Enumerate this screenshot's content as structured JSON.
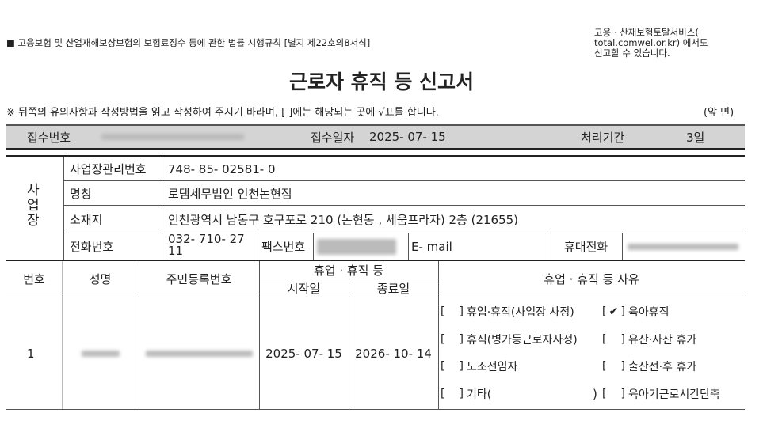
{
  "header": {
    "form_ref": "■ 고용보험 및 산업재해보상보험의 보험료징수 등에 관한 법률 시행규칙 [별지 제22호의8서식]",
    "online_note": [
      "고용 · 산재보험토탈서비스(",
      "total.comwel.or.kr) 에서도",
      "신고할 수 있습니다."
    ],
    "title": "근로자 휴직 등 신고서",
    "instruction": "※ 뒤쪽의 유의사항과 작성방법을 읽고 작성하여 주시기 바라며, [  ]에는 해당되는 곳에 √표를 합니다.",
    "page_side": "(앞 면)"
  },
  "receipt": {
    "number_label": "접수번호",
    "date_label": "접수일자",
    "date": "2025- 07- 15",
    "period_label": "처리기간",
    "period": "3일"
  },
  "business": {
    "section_label": "사업장",
    "id_label": "사업장관리번호",
    "id": "748- 85- 02581- 0",
    "name_label": "명칭",
    "name": "로뎀세무법인 인천논현점",
    "address_label": "소재지",
    "address": "인천광역시 남동구 호구포로 210 (논현동 , 세움프라자) 2층 (21655)",
    "phone_label": "전화번호",
    "phone": "032- 710- 27 11",
    "fax_label": "팩스번호",
    "email_label": "E- mail",
    "mobile_label": "휴대전화"
  },
  "workers": {
    "headers": {
      "no": "번호",
      "name": "성명",
      "rrn": "주민등록번호",
      "leave": "휴업 · 휴직 등",
      "start": "시작일",
      "end": "종료일",
      "reason": "휴업 · 휴직 등 사유"
    },
    "rows": [
      {
        "no": "1",
        "start": "2025- 07- 15",
        "end": "2026- 10- 14"
      }
    ],
    "reasons": [
      {
        "label": "휴업·휴직(사업장 사정)",
        "checked": false
      },
      {
        "label": "육아휴직",
        "checked": true
      },
      {
        "label": "휴직(병가등근로자사정)",
        "checked": false
      },
      {
        "label": "유산·사산 휴가",
        "checked": false
      },
      {
        "label": "노조전임자",
        "checked": false
      },
      {
        "label": "출산전·후 휴가",
        "checked": false
      },
      {
        "label": "기타(",
        "checked": false
      },
      {
        "label": "육아기근로시간단축",
        "checked": false
      }
    ],
    "box_open": "[",
    "box_close": "]",
    "check_mark": "✔",
    "other_close": ")"
  }
}
